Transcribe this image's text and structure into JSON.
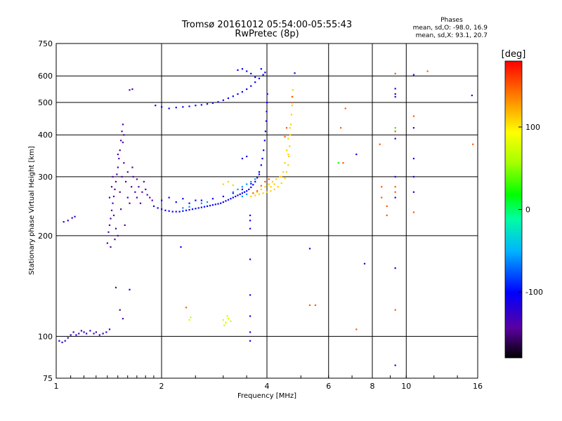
{
  "chart_data": {
    "type": "scatter",
    "title": "Tromsø 20161012 05:54:00-05:55:43",
    "subtitle": "RwPretec (8p)",
    "xlabel": "Frequency [MHz]",
    "ylabel": "Stationary phase Virtual Height [km]",
    "x_scale": "log",
    "y_scale": "log",
    "xlim": [
      1,
      16
    ],
    "ylim": [
      75,
      750
    ],
    "x_ticks": [
      1,
      2,
      4,
      6,
      8,
      10,
      16
    ],
    "x_tick_labels": [
      "1",
      "2",
      "4",
      "6",
      "8",
      "10",
      "16"
    ],
    "x_gridlines": [
      2,
      4,
      6,
      8,
      10
    ],
    "y_ticks": [
      75,
      100,
      200,
      300,
      400,
      500,
      600,
      750
    ],
    "y_tick_labels": [
      "75",
      "100",
      "200",
      "300",
      "400",
      "500",
      "600",
      "750"
    ],
    "y_gridlines": [
      100,
      200,
      300,
      400,
      500,
      600
    ],
    "grid": true,
    "stats": {
      "heading": "Phases",
      "line_o": "mean, sd,O: -98.0, 16.9",
      "line_x": "mean, sd,X:  93.1, 20.7"
    },
    "colorbar": {
      "label": "[deg]",
      "min": -180,
      "max": 180,
      "ticks": [
        100,
        0,
        -100
      ],
      "tick_labels": [
        "100",
        "0",
        "-100"
      ]
    },
    "series": [
      {
        "trace": "low-frequency E-layer trace",
        "phase": -125,
        "points": [
          [
            1.02,
            97
          ],
          [
            1.04,
            96
          ],
          [
            1.06,
            97
          ],
          [
            1.08,
            99
          ],
          [
            1.1,
            101
          ],
          [
            1.12,
            103
          ],
          [
            1.14,
            101
          ],
          [
            1.16,
            102
          ],
          [
            1.18,
            104
          ],
          [
            1.2,
            103
          ],
          [
            1.22,
            102
          ],
          [
            1.25,
            104
          ],
          [
            1.28,
            102
          ],
          [
            1.3,
            103
          ],
          [
            1.33,
            101
          ],
          [
            1.36,
            102
          ],
          [
            1.39,
            103
          ],
          [
            1.42,
            105
          ],
          [
            1.05,
            220
          ],
          [
            1.08,
            222
          ],
          [
            1.11,
            226
          ],
          [
            1.13,
            228
          ]
        ]
      },
      {
        "trace": "spread cluster near 1.5 MHz",
        "phase": -140,
        "points": [
          [
            1.4,
            190
          ],
          [
            1.41,
            205
          ],
          [
            1.42,
            215
          ],
          [
            1.43,
            225
          ],
          [
            1.44,
            238
          ],
          [
            1.45,
            250
          ],
          [
            1.46,
            262
          ],
          [
            1.47,
            275
          ],
          [
            1.48,
            290
          ],
          [
            1.49,
            305
          ],
          [
            1.5,
            320
          ],
          [
            1.51,
            340
          ],
          [
            1.52,
            360
          ],
          [
            1.53,
            385
          ],
          [
            1.54,
            410
          ],
          [
            1.55,
            430
          ],
          [
            1.42,
            260
          ],
          [
            1.44,
            280
          ],
          [
            1.46,
            230
          ],
          [
            1.48,
            210
          ],
          [
            1.5,
            200
          ],
          [
            1.52,
            270
          ],
          [
            1.54,
            300
          ],
          [
            1.56,
            330
          ],
          [
            1.58,
            290
          ],
          [
            1.6,
            260
          ],
          [
            1.62,
            250
          ],
          [
            1.64,
            280
          ],
          [
            1.66,
            300
          ],
          [
            1.68,
            270
          ],
          [
            1.7,
            260
          ],
          [
            1.72,
            280
          ],
          [
            1.74,
            250
          ],
          [
            1.76,
            270
          ],
          [
            1.78,
            290
          ],
          [
            1.8,
            275
          ],
          [
            1.82,
            265
          ],
          [
            1.85,
            260
          ],
          [
            1.88,
            255
          ],
          [
            1.45,
            300
          ],
          [
            1.5,
            350
          ],
          [
            1.55,
            380
          ],
          [
            1.56,
            400
          ],
          [
            1.6,
            310
          ],
          [
            1.65,
            320
          ],
          [
            1.7,
            295
          ],
          [
            1.53,
            240
          ],
          [
            1.57,
            215
          ],
          [
            1.47,
            195
          ],
          [
            1.43,
            185
          ],
          [
            1.62,
            545
          ],
          [
            1.65,
            548
          ],
          [
            1.48,
            140
          ],
          [
            1.52,
            120
          ],
          [
            1.55,
            113
          ]
        ]
      },
      {
        "trace": "F-layer ordinary trace",
        "phase": -100,
        "points": [
          [
            1.9,
            245
          ],
          [
            1.95,
            242
          ],
          [
            2.0,
            240
          ],
          [
            2.05,
            238
          ],
          [
            2.1,
            237
          ],
          [
            2.15,
            236
          ],
          [
            2.2,
            236
          ],
          [
            2.25,
            236
          ],
          [
            2.3,
            237
          ],
          [
            2.35,
            238
          ],
          [
            2.4,
            239
          ],
          [
            2.45,
            240
          ],
          [
            2.5,
            241
          ],
          [
            2.55,
            242
          ],
          [
            2.6,
            243
          ],
          [
            2.65,
            244
          ],
          [
            2.7,
            245
          ],
          [
            2.75,
            246
          ],
          [
            2.8,
            247
          ],
          [
            2.85,
            248
          ],
          [
            2.9,
            249
          ],
          [
            2.95,
            250
          ],
          [
            3.0,
            252
          ],
          [
            3.05,
            254
          ],
          [
            3.1,
            256
          ],
          [
            3.15,
            258
          ],
          [
            3.2,
            260
          ],
          [
            3.25,
            262
          ],
          [
            3.3,
            264
          ],
          [
            3.35,
            266
          ],
          [
            3.4,
            268
          ],
          [
            3.45,
            270
          ],
          [
            3.5,
            272
          ],
          [
            3.55,
            275
          ],
          [
            3.6,
            279
          ],
          [
            3.65,
            284
          ],
          [
            3.7,
            290
          ],
          [
            3.75,
            298
          ],
          [
            3.8,
            310
          ],
          [
            3.85,
            325
          ],
          [
            3.88,
            340
          ],
          [
            3.91,
            360
          ],
          [
            3.94,
            385
          ],
          [
            3.96,
            410
          ],
          [
            3.98,
            440
          ],
          [
            3.99,
            470
          ],
          [
            4.0,
            500
          ],
          [
            4.01,
            530
          ],
          [
            2.0,
            255
          ],
          [
            2.2,
            252
          ],
          [
            2.4,
            250
          ],
          [
            2.6,
            255
          ],
          [
            2.8,
            258
          ],
          [
            3.0,
            262
          ],
          [
            3.2,
            268
          ],
          [
            3.4,
            275
          ],
          [
            3.6,
            286
          ],
          [
            3.8,
            305
          ],
          [
            2.1,
            260
          ],
          [
            2.3,
            258
          ],
          [
            2.5,
            255
          ],
          [
            1.92,
            490
          ],
          [
            2.0,
            485
          ],
          [
            2.1,
            480
          ],
          [
            2.2,
            483
          ],
          [
            2.3,
            485
          ],
          [
            2.4,
            487
          ],
          [
            2.5,
            490
          ],
          [
            2.6,
            492
          ],
          [
            2.7,
            495
          ],
          [
            2.8,
            498
          ],
          [
            2.9,
            502
          ],
          [
            3.0,
            508
          ],
          [
            3.1,
            515
          ],
          [
            3.2,
            522
          ],
          [
            3.3,
            530
          ],
          [
            3.4,
            538
          ],
          [
            3.5,
            548
          ],
          [
            3.6,
            560
          ],
          [
            3.7,
            575
          ],
          [
            3.8,
            590
          ],
          [
            3.9,
            605
          ],
          [
            3.95,
            615
          ],
          [
            3.3,
            625
          ],
          [
            3.5,
            620
          ],
          [
            3.6,
            610
          ],
          [
            3.7,
            595
          ],
          [
            3.4,
            630
          ],
          [
            3.85,
            630
          ],
          [
            2.27,
            185
          ]
        ]
      },
      {
        "trace": "F-layer transition points",
        "phase": -60,
        "points": [
          [
            3.2,
            270
          ],
          [
            3.3,
            275
          ],
          [
            3.4,
            280
          ],
          [
            3.5,
            285
          ],
          [
            3.6,
            290
          ],
          [
            3.7,
            295
          ],
          [
            3.4,
            262
          ],
          [
            3.5,
            266
          ],
          [
            2.6,
            250
          ],
          [
            2.7,
            252
          ],
          [
            2.3,
            242
          ],
          [
            2.4,
            244
          ]
        ]
      },
      {
        "trace": "F-layer extraordinary trace",
        "phase": 110,
        "points": [
          [
            3.6,
            262
          ],
          [
            3.7,
            264
          ],
          [
            3.8,
            266
          ],
          [
            3.9,
            268
          ],
          [
            4.0,
            270
          ],
          [
            4.1,
            272
          ],
          [
            4.2,
            275
          ],
          [
            4.3,
            280
          ],
          [
            4.4,
            287
          ],
          [
            4.5,
            297
          ],
          [
            4.55,
            310
          ],
          [
            4.6,
            325
          ],
          [
            4.62,
            345
          ],
          [
            4.64,
            370
          ],
          [
            4.66,
            400
          ],
          [
            4.68,
            430
          ],
          [
            4.7,
            460
          ],
          [
            4.72,
            490
          ],
          [
            4.73,
            520
          ],
          [
            4.74,
            545
          ],
          [
            3.75,
            270
          ],
          [
            3.85,
            275
          ],
          [
            3.95,
            280
          ],
          [
            4.05,
            285
          ],
          [
            4.15,
            290
          ],
          [
            4.25,
            295
          ],
          [
            4.35,
            300
          ],
          [
            4.45,
            310
          ],
          [
            4.5,
            330
          ],
          [
            4.55,
            360
          ],
          [
            4.6,
            390
          ],
          [
            4.2,
            285
          ],
          [
            4.4,
            300
          ],
          [
            4.6,
            350
          ],
          [
            4.65,
            420
          ],
          [
            4.1,
            280
          ],
          [
            3.0,
            285
          ],
          [
            3.1,
            290
          ],
          [
            3.2,
            283
          ]
        ]
      },
      {
        "trace": "F-layer extraordinary orange fringe",
        "phase": 150,
        "points": [
          [
            3.65,
            268
          ],
          [
            3.75,
            272
          ],
          [
            3.85,
            282
          ],
          [
            3.95,
            290
          ],
          [
            4.05,
            295
          ],
          [
            4.7,
            500
          ],
          [
            4.72,
            520
          ],
          [
            4.5,
            395
          ],
          [
            4.55,
            420
          ]
        ]
      },
      {
        "trace": "scattered points",
        "phase": -115,
        "points": [
          [
            3.58,
            230
          ],
          [
            3.58,
            222
          ],
          [
            3.58,
            210
          ],
          [
            3.58,
            170
          ],
          [
            3.58,
            133
          ],
          [
            3.58,
            115
          ],
          [
            3.58,
            103
          ],
          [
            3.58,
            97
          ],
          [
            3.4,
            340
          ],
          [
            3.5,
            345
          ],
          [
            4.8,
            612
          ],
          [
            5.3,
            183
          ],
          [
            7.2,
            350
          ],
          [
            7.6,
            165
          ],
          [
            9.3,
            530
          ],
          [
            9.3,
            550
          ],
          [
            9.3,
            520
          ],
          [
            9.3,
            390
          ],
          [
            9.3,
            300
          ],
          [
            9.3,
            260
          ],
          [
            9.3,
            160
          ],
          [
            9.3,
            82
          ],
          [
            10.5,
            605
          ],
          [
            10.5,
            420
          ],
          [
            10.5,
            340
          ],
          [
            10.5,
            300
          ],
          [
            10.5,
            270
          ],
          [
            15.4,
            525
          ],
          [
            1.62,
            138
          ]
        ]
      },
      {
        "trace": "scattered warm points",
        "phase": 150,
        "points": [
          [
            2.35,
            122
          ],
          [
            5.3,
            124
          ],
          [
            5.5,
            124
          ],
          [
            6.5,
            420
          ],
          [
            6.7,
            480
          ],
          [
            6.6,
            330
          ],
          [
            8.4,
            375
          ],
          [
            8.5,
            260
          ],
          [
            8.5,
            280
          ],
          [
            8.8,
            230
          ],
          [
            8.8,
            245
          ],
          [
            9.3,
            610
          ],
          [
            9.3,
            410
          ],
          [
            9.3,
            270
          ],
          [
            9.3,
            280
          ],
          [
            9.3,
            120
          ],
          [
            7.2,
            105
          ],
          [
            10.5,
            235
          ],
          [
            10.5,
            455
          ],
          [
            11.5,
            620
          ],
          [
            15.5,
            375
          ]
        ]
      },
      {
        "trace": "yellow-green patches",
        "phase": 70,
        "points": [
          [
            2.4,
            112
          ],
          [
            2.42,
            114
          ],
          [
            3.0,
            112
          ],
          [
            3.05,
            110
          ],
          [
            3.1,
            113
          ],
          [
            3.15,
            111
          ],
          [
            3.08,
            115
          ],
          [
            3.02,
            108
          ]
        ]
      },
      {
        "trace": "cyan-green isolated points",
        "phase": 20,
        "points": [
          [
            9.3,
            420
          ],
          [
            6.4,
            330
          ]
        ]
      }
    ]
  }
}
